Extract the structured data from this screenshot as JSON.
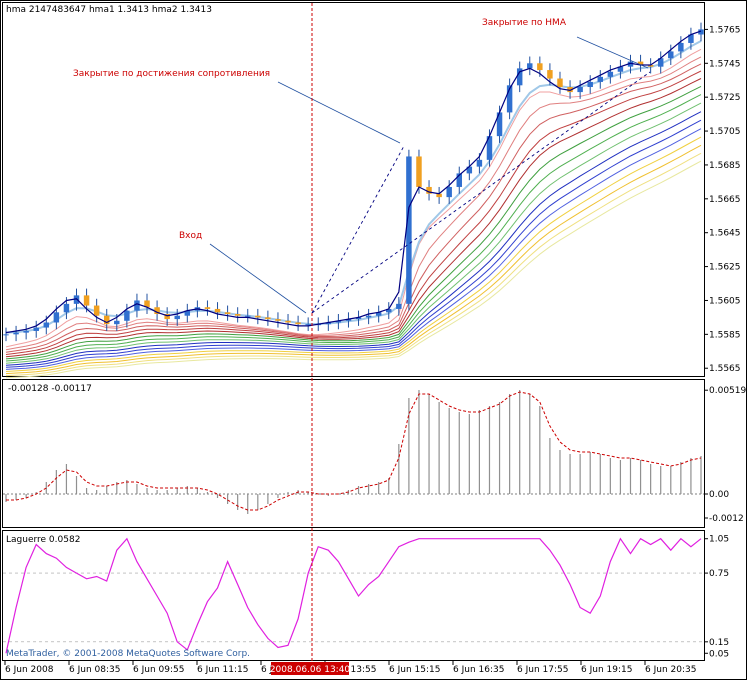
{
  "header": {
    "main_title": "hma 2147483647 hma1 1.3413 hma2 1.3413",
    "macd_title": "-0.00128 -0.00117",
    "laguerre_title": "Laguerre 0.0582"
  },
  "copyright": "MetaTrader, © 2001-2008 MetaQuotes Software Corp.",
  "annotations": {
    "exit_hma": "Закрытие по HMA",
    "exit_resistance": "Закрытие по достижения сопротивления",
    "entry": "Вход"
  },
  "crosshair": {
    "time_label": "2008.06.06 13:40"
  },
  "colors": {
    "candle": "#3070d0",
    "candle_alt": "#f0a020",
    "hma": "#000080",
    "ema_light": "#a0c8e8",
    "macd_signal": "#cc0000",
    "laguerre": "#e020e0",
    "annotation": "#cc0000",
    "crosshair": "#cc0000"
  },
  "chart_data": [
    {
      "type": "candlestick",
      "panel": "price",
      "title": "hma 2147483647 hma1 1.3413 hma2 1.3413",
      "x_tick_labels": [
        "6 Jun 2008",
        "6 Jun 08:35",
        "6 Jun 09:55",
        "6 Jun 11:15",
        "6 Jun 12:35",
        "6 Jun 13:55",
        "6 Jun 15:15",
        "6 Jun 16:35",
        "6 Jun 17:55",
        "6 Jun 19:15",
        "6 Jun 20:35"
      ],
      "y_tick_labels": [
        "1.5765",
        "1.5745",
        "1.5725",
        "1.5705",
        "1.5685",
        "1.5665",
        "1.5645",
        "1.5625",
        "1.5605",
        "1.5585",
        "1.5565"
      ],
      "y_ticks": [
        1.5765,
        1.5745,
        1.5725,
        1.5705,
        1.5685,
        1.5665,
        1.5645,
        1.5625,
        1.5605,
        1.5585,
        1.5565
      ],
      "ylim": [
        1.5561,
        1.578
      ],
      "close": [
        1.5585,
        1.5586,
        1.5587,
        1.5589,
        1.5592,
        1.5598,
        1.5603,
        1.5608,
        1.5602,
        1.5596,
        1.5591,
        1.5593,
        1.5599,
        1.5605,
        1.5601,
        1.5597,
        1.5594,
        1.5596,
        1.5599,
        1.5601,
        1.56,
        1.5598,
        1.5597,
        1.5596,
        1.5596,
        1.5595,
        1.5594,
        1.5593,
        1.5592,
        1.5591,
        1.5591,
        1.5591,
        1.5592,
        1.5593,
        1.5594,
        1.5595,
        1.5596,
        1.5598,
        1.56,
        1.5603,
        1.569,
        1.5672,
        1.5668,
        1.5666,
        1.5672,
        1.568,
        1.5684,
        1.5688,
        1.5702,
        1.5716,
        1.5732,
        1.5742,
        1.5745,
        1.5741,
        1.5736,
        1.5731,
        1.5728,
        1.5731,
        1.5734,
        1.5737,
        1.574,
        1.5743,
        1.5746,
        1.5744,
        1.5743,
        1.5748,
        1.5752,
        1.5757,
        1.5762,
        1.5765
      ],
      "series": [
        {
          "name": "hma",
          "values": [
            1.5586,
            1.5587,
            1.5588,
            1.559,
            1.5594,
            1.56,
            1.5605,
            1.5606,
            1.56,
            1.5595,
            1.5592,
            1.5595,
            1.56,
            1.5603,
            1.5601,
            1.5598,
            1.5596,
            1.5597,
            1.5599,
            1.56,
            1.5599,
            1.5597,
            1.5596,
            1.5595,
            1.5595,
            1.5594,
            1.5593,
            1.5592,
            1.5591,
            1.559,
            1.559,
            1.5591,
            1.5592,
            1.5593,
            1.5594,
            1.5595,
            1.5597,
            1.5598,
            1.56,
            1.561,
            1.566,
            1.5672,
            1.5669,
            1.5668,
            1.5673,
            1.5679,
            1.5684,
            1.569,
            1.5702,
            1.5716,
            1.573,
            1.574,
            1.5742,
            1.5739,
            1.5734,
            1.573,
            1.5729,
            1.5732,
            1.5735,
            1.5738,
            1.5741,
            1.5743,
            1.5745,
            1.5744,
            1.5744,
            1.5748,
            1.5753,
            1.5758,
            1.5762,
            1.5764
          ]
        }
      ]
    },
    {
      "type": "bar",
      "panel": "macd",
      "title": "-0.00128 -0.00117",
      "y_tick_labels": [
        "0.00519",
        "0.00",
        "-0.0012"
      ],
      "y_ticks": [
        0.00519,
        0.0,
        -0.0012
      ],
      "ylim": [
        -0.0016,
        0.0056
      ],
      "values": [
        -0.0004,
        -0.0003,
        -0.0002,
        0.0001,
        0.0006,
        0.0012,
        0.0015,
        0.0009,
        0.0003,
        0.0002,
        0.0004,
        0.0006,
        0.0007,
        0.0005,
        0.0003,
        0.0002,
        0.0002,
        0.0003,
        0.0004,
        0.0003,
        0.0001,
        -0.0002,
        -0.0005,
        -0.0008,
        -0.001,
        -0.0008,
        -0.0005,
        -0.0002,
        0.0001,
        0.0002,
        0.0001,
        0.0,
        -0.0001,
        0.0,
        0.0002,
        0.0004,
        0.0005,
        0.0006,
        0.0008,
        0.0025,
        0.0048,
        0.0052,
        0.005,
        0.0046,
        0.0043,
        0.0041,
        0.004,
        0.0042,
        0.0044,
        0.0046,
        0.005,
        0.0052,
        0.005,
        0.0044,
        0.0028,
        0.0022,
        0.002,
        0.002,
        0.0021,
        0.002,
        0.0018,
        0.0017,
        0.0018,
        0.0017,
        0.0015,
        0.0014,
        0.0014,
        0.0016,
        0.0018,
        0.0019
      ],
      "series": [
        {
          "name": "signal",
          "values": [
            -0.0003,
            -0.0003,
            -0.0002,
            0.0,
            0.0003,
            0.0008,
            0.0012,
            0.0011,
            0.0006,
            0.0004,
            0.0004,
            0.0005,
            0.0006,
            0.0006,
            0.0004,
            0.0003,
            0.0003,
            0.0003,
            0.0003,
            0.0003,
            0.0002,
            0.0,
            -0.0003,
            -0.0006,
            -0.0008,
            -0.0008,
            -0.0006,
            -0.0003,
            -0.0001,
            0.0001,
            0.0001,
            0.0,
            0.0,
            0.0,
            0.0001,
            0.0003,
            0.0004,
            0.0005,
            0.0007,
            0.0018,
            0.004,
            0.005,
            0.005,
            0.0047,
            0.0044,
            0.0042,
            0.0041,
            0.0041,
            0.0043,
            0.0045,
            0.0049,
            0.0051,
            0.005,
            0.0046,
            0.0034,
            0.0026,
            0.0022,
            0.0021,
            0.0021,
            0.002,
            0.0019,
            0.0018,
            0.0018,
            0.0017,
            0.0016,
            0.0015,
            0.0014,
            0.0015,
            0.0017,
            0.0018
          ]
        }
      ]
    },
    {
      "type": "line",
      "panel": "laguerre",
      "title": "Laguerre 0.0582",
      "y_tick_labels": [
        "1.05",
        "0.75",
        "0.15",
        "0.05"
      ],
      "y_ticks": [
        1.05,
        0.75,
        0.15,
        0.05
      ],
      "ylim": [
        0.0,
        1.1
      ],
      "series": [
        {
          "name": "Laguerre",
          "values": [
            0.05,
            0.45,
            0.8,
            1.0,
            0.92,
            0.88,
            0.8,
            0.75,
            0.7,
            0.72,
            0.68,
            0.95,
            1.05,
            0.85,
            0.7,
            0.55,
            0.4,
            0.15,
            0.08,
            0.3,
            0.5,
            0.62,
            0.85,
            0.65,
            0.45,
            0.3,
            0.18,
            0.1,
            0.12,
            0.35,
            0.75,
            0.98,
            0.95,
            0.85,
            0.7,
            0.55,
            0.65,
            0.72,
            0.85,
            0.98,
            1.02,
            1.05,
            1.05,
            1.05,
            1.05,
            1.05,
            1.05,
            1.05,
            1.05,
            1.05,
            1.05,
            1.05,
            1.05,
            1.05,
            0.95,
            0.82,
            0.65,
            0.45,
            0.4,
            0.55,
            0.85,
            1.05,
            0.92,
            1.05,
            1.0,
            1.05,
            0.95,
            1.05,
            0.98,
            1.05
          ]
        }
      ]
    }
  ]
}
